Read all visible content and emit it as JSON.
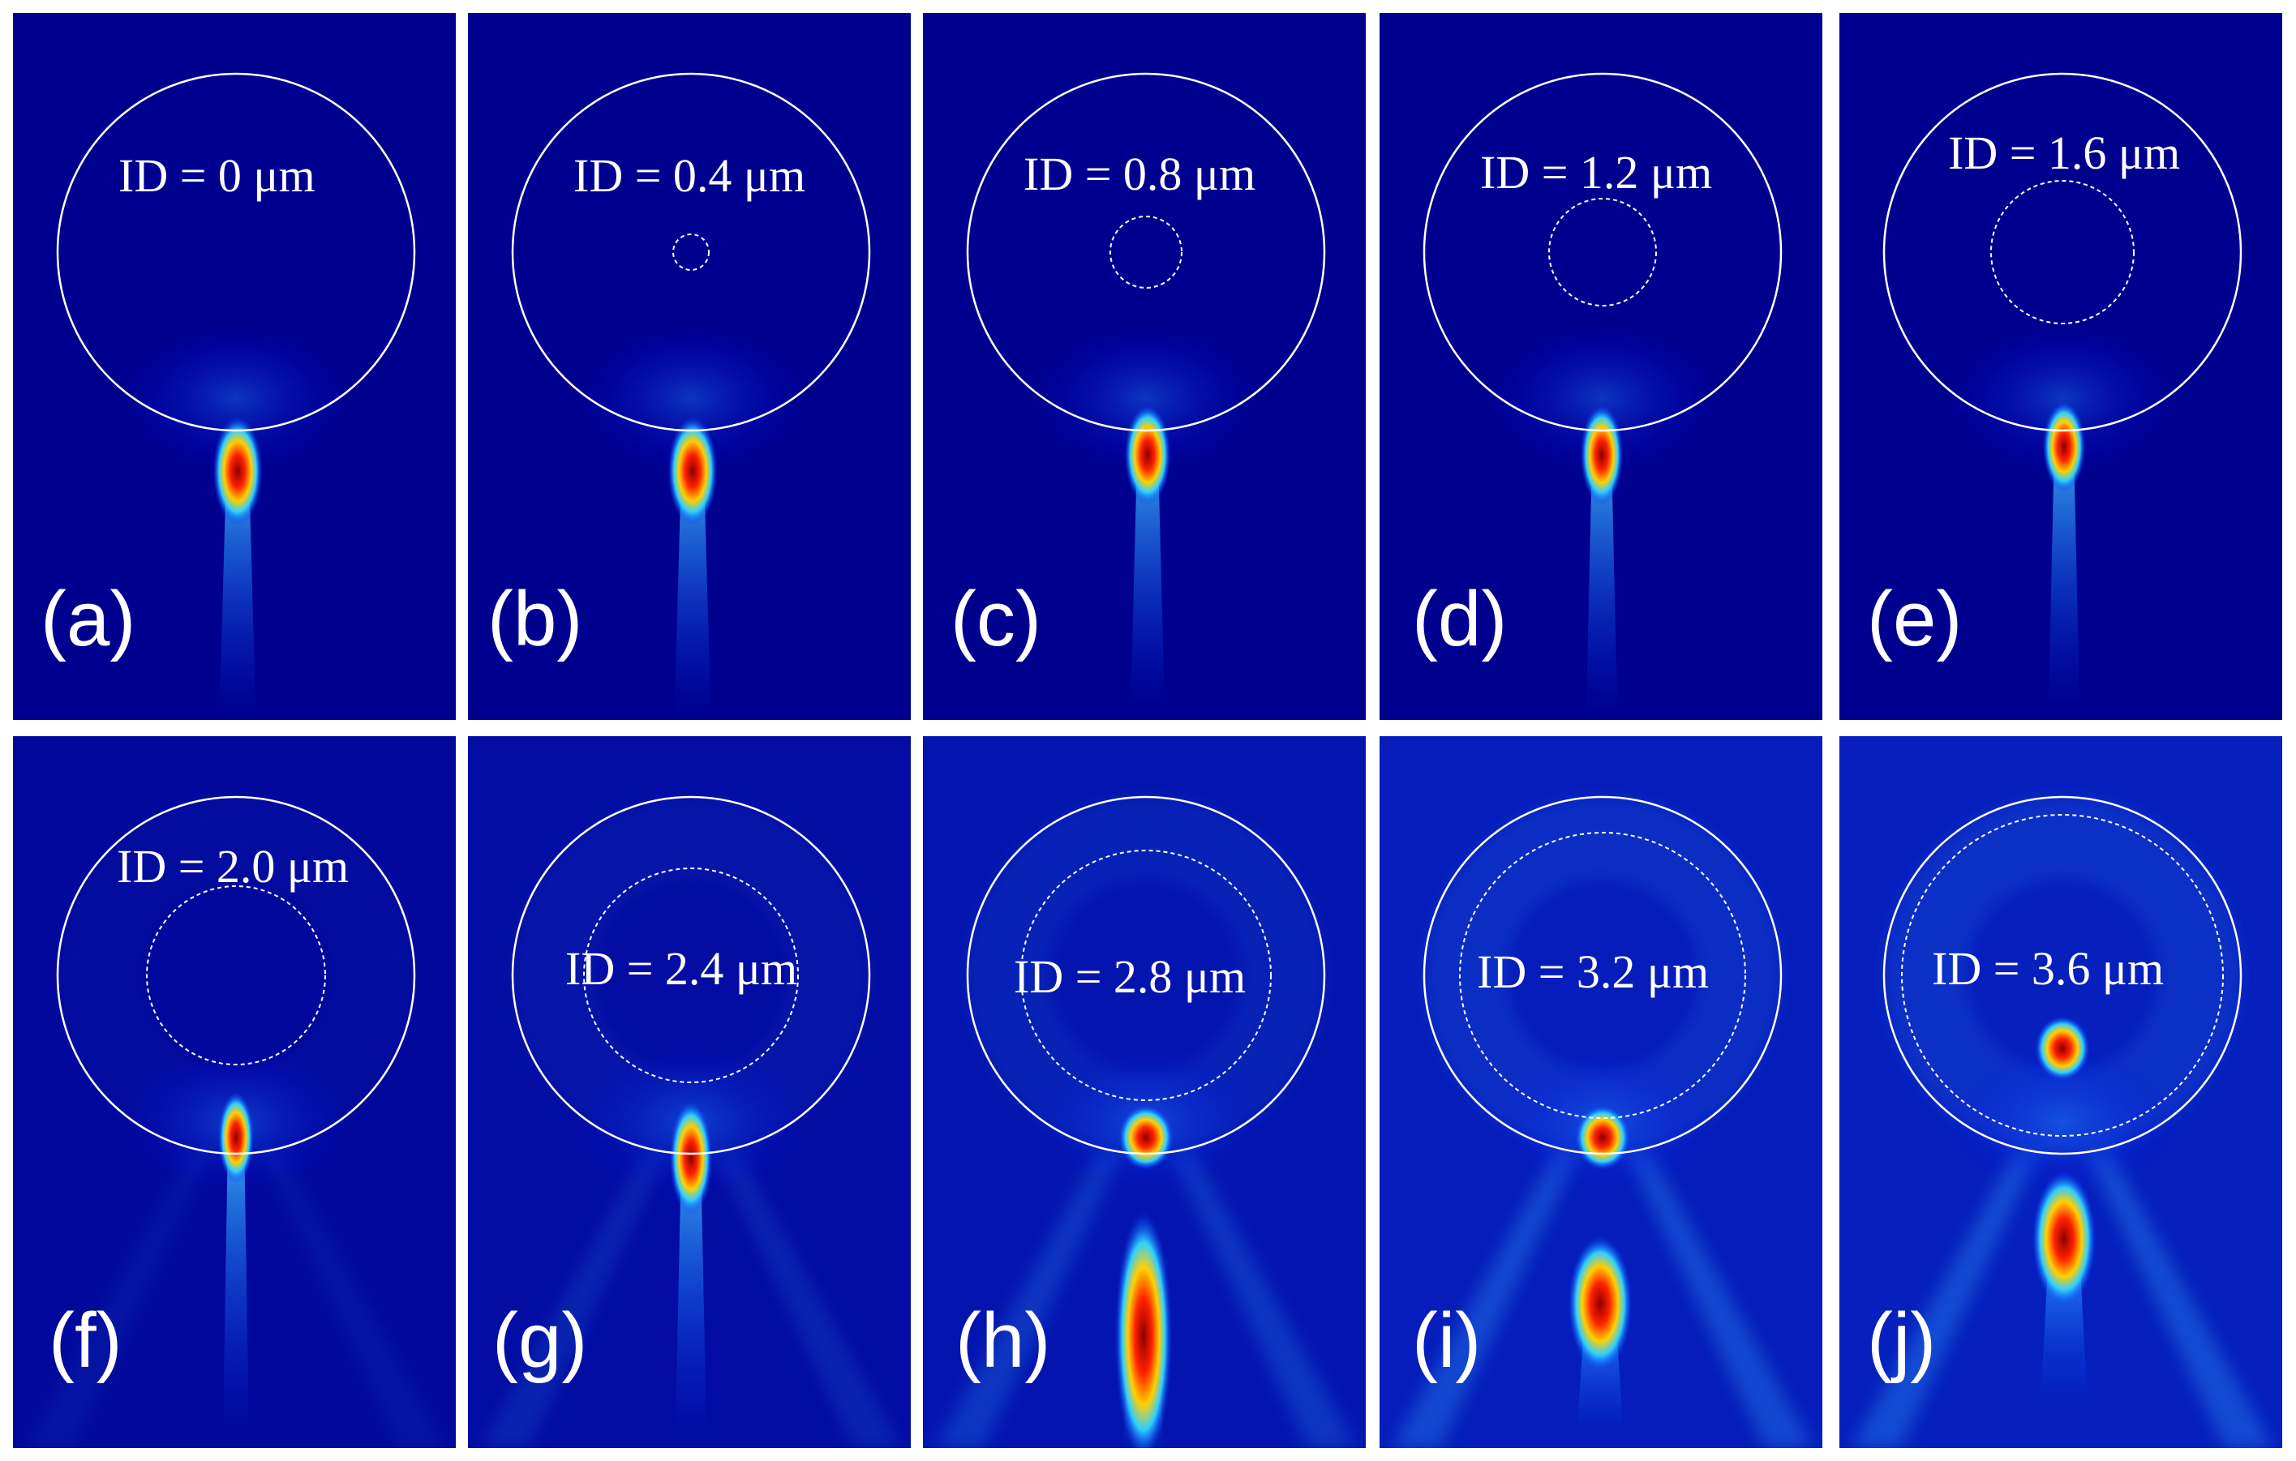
{
  "colors": {
    "background": "#00008f",
    "boundary": "#ffffff",
    "hot": "#c00000"
  },
  "panels": [
    {
      "letter": "(a)",
      "label": "ID = 0 μm",
      "inner_diameter_um": 0.0
    },
    {
      "letter": "(b)",
      "label": "ID = 0.4 μm",
      "inner_diameter_um": 0.4
    },
    {
      "letter": "(c)",
      "label": "ID = 0.8 μm",
      "inner_diameter_um": 0.8
    },
    {
      "letter": "(d)",
      "label": "ID = 1.2 μm",
      "inner_diameter_um": 1.2
    },
    {
      "letter": "(e)",
      "label": "ID = 1.6 μm",
      "inner_diameter_um": 1.6
    },
    {
      "letter": "(f)",
      "label": "ID = 2.0 μm",
      "inner_diameter_um": 2.0
    },
    {
      "letter": "(g)",
      "label": "ID = 2.4 μm",
      "inner_diameter_um": 2.4
    },
    {
      "letter": "(h)",
      "label": "ID = 2.8 μm",
      "inner_diameter_um": 2.8
    },
    {
      "letter": "(i)",
      "label": "ID = 3.2 μm",
      "inner_diameter_um": 3.2
    },
    {
      "letter": "(j)",
      "label": "ID = 3.6 μm",
      "inner_diameter_um": 3.6
    }
  ]
}
